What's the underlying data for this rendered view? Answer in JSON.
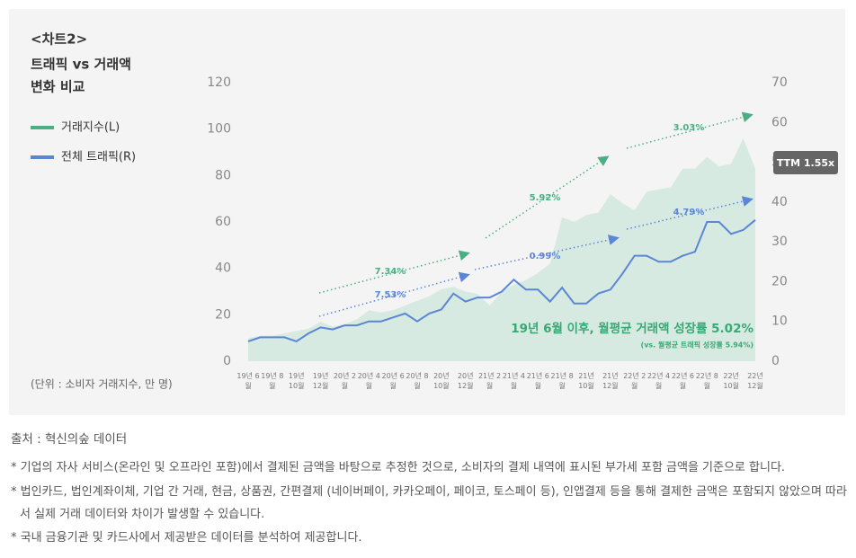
{
  "chart_data": {
    "type": "area-line",
    "title": "<차트2>",
    "subtitle": "트래픽 vs 거래액",
    "subtitle2": "변화 비교",
    "unit_label": "(단위 : 소비자 거래지수, 만 명)",
    "categories": [
      "19년 6월",
      null,
      "19년 8월",
      null,
      "19년 10월",
      null,
      "19년 12월",
      null,
      "20년 2월",
      null,
      "20년 4월",
      null,
      "20년 6월",
      null,
      "20년 8월",
      null,
      "20년 10월",
      null,
      "20년 12월",
      null,
      "21년 2월",
      null,
      "21년 4월",
      null,
      "21년 6월",
      null,
      "21년 8월",
      null,
      "21년 10월",
      null,
      "21년 12월",
      null,
      "22년 2월",
      null,
      "22년 4월",
      null,
      "22년 6월",
      null,
      "22년 8월",
      null,
      "22년 10월",
      null,
      "22년 12월"
    ],
    "series": [
      {
        "name": "거래지수(L)",
        "color": "#4caf84",
        "fill": "#d6eae1",
        "axis": "y",
        "values": [
          10,
          11,
          11,
          12,
          13,
          14,
          17,
          15,
          16,
          18,
          22,
          21,
          22,
          24,
          26,
          28,
          31,
          32,
          30,
          29,
          24,
          30,
          33,
          35,
          38,
          42,
          62,
          60,
          63,
          64,
          72,
          68,
          65,
          73,
          74,
          75,
          83,
          83,
          88,
          84,
          85,
          96,
          83
        ]
      },
      {
        "name": "전체 트래픽(R)",
        "color": "#5b86d6",
        "axis": "y2",
        "values": [
          5,
          6,
          6,
          6,
          5,
          7,
          8.5,
          8,
          9,
          9,
          10,
          10,
          11,
          12,
          10,
          12,
          13,
          17,
          15,
          16,
          16,
          17.5,
          20.5,
          18,
          18,
          15,
          18.5,
          14.5,
          14.5,
          17,
          18,
          22,
          26.5,
          26.5,
          25,
          25,
          26.5,
          27.5,
          35,
          35,
          32,
          33,
          35.5
        ]
      }
    ],
    "ylim": [
      0,
      120
    ],
    "yticks": [
      0,
      20,
      40,
      60,
      80,
      100,
      120
    ],
    "y2lim": [
      0,
      70
    ],
    "y2ticks": [
      0,
      10,
      20,
      30,
      40,
      50,
      60,
      70
    ],
    "annotations": [
      "7.34%",
      "5.92%",
      "3.03%",
      "7.53%",
      "0.99%",
      "4.79%"
    ],
    "headline": "19년 6월 이후, 월평균 거래액 성장률 5.02%",
    "headline_sub": "(vs. 월평균 트래픽 성장률 5.94%)",
    "badge": "TTM 1.55x"
  },
  "source": "출처 : 혁신의숲 데이터",
  "notes": [
    "* 기업의 자사 서비스(온라인 및 오프라인 포함)에서 결제된 금액을 바탕으로 추정한 것으로, 소비자의 결제 내역에 표시된 부가세 포함 금액을 기준으로 합니다.",
    "* 법인카드, 법인계좌이체, 기업 간 거래, 현금, 상품권, 간편결제 (네이버페이, 카카오페이, 페이코, 토스페이 등), 인앱결제 등을 통해 결제한 금액은 포함되지 않았으며 따라서 실제 거래 데이터와 차이가 발생할 수 있습니다.",
    "* 국내 금융기관 및 카드사에서 제공받은 데이터를 분석하여 제공합니다."
  ]
}
